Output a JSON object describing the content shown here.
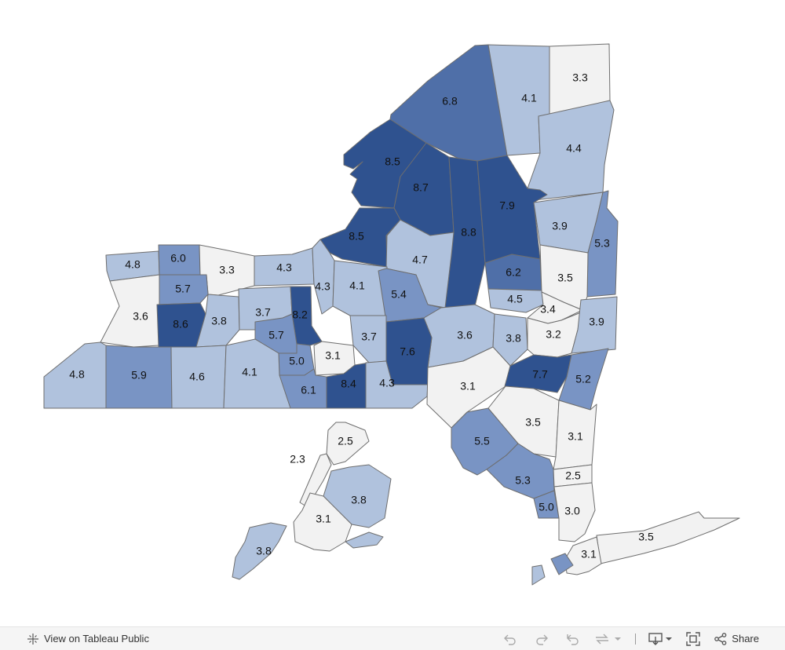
{
  "map": {
    "colors": {
      "lowest": "#f2f2f2",
      "low": "#b0c2dd",
      "mid": "#7994c4",
      "high": "#4f6fa8",
      "highest": "#2f528f",
      "border": "#6e6e6e"
    },
    "counties": [
      {
        "id": "c01",
        "value": "3.3",
        "tier": "lowest"
      },
      {
        "id": "c02",
        "value": "6.8",
        "tier": "high"
      },
      {
        "id": "c03",
        "value": "4.1",
        "tier": "low"
      },
      {
        "id": "c04",
        "value": "4.4",
        "tier": "low"
      },
      {
        "id": "c05",
        "value": "8.5",
        "tier": "highest"
      },
      {
        "id": "c06",
        "value": "8.7",
        "tier": "highest"
      },
      {
        "id": "c07",
        "value": "8.8",
        "tier": "highest"
      },
      {
        "id": "c08",
        "value": "7.9",
        "tier": "highest"
      },
      {
        "id": "c09",
        "value": "3.9",
        "tier": "low"
      },
      {
        "id": "c10",
        "value": "5.3",
        "tier": "mid"
      },
      {
        "id": "c11",
        "value": "8.5",
        "tier": "highest"
      },
      {
        "id": "c12",
        "value": "4.7",
        "tier": "low"
      },
      {
        "id": "c13",
        "value": "6.2",
        "tier": "high"
      },
      {
        "id": "c14",
        "value": "3.5",
        "tier": "lowest"
      },
      {
        "id": "c15",
        "value": "4.8",
        "tier": "low"
      },
      {
        "id": "c16",
        "value": "6.0",
        "tier": "mid"
      },
      {
        "id": "c17",
        "value": "3.3",
        "tier": "lowest"
      },
      {
        "id": "c18",
        "value": "4.3",
        "tier": "low"
      },
      {
        "id": "c19",
        "value": "4.3",
        "tier": "low"
      },
      {
        "id": "c20",
        "value": "4.1",
        "tier": "low"
      },
      {
        "id": "c21",
        "value": "5.4",
        "tier": "mid"
      },
      {
        "id": "c22",
        "value": "4.5",
        "tier": "low"
      },
      {
        "id": "c23",
        "value": "3.4",
        "tier": "lowest"
      },
      {
        "id": "c24",
        "value": "5.7",
        "tier": "mid"
      },
      {
        "id": "c25",
        "value": "3.6",
        "tier": "lowest"
      },
      {
        "id": "c26",
        "value": "8.6",
        "tier": "highest"
      },
      {
        "id": "c27",
        "value": "3.8",
        "tier": "low"
      },
      {
        "id": "c28",
        "value": "3.7",
        "tier": "low"
      },
      {
        "id": "c29",
        "value": "8.2",
        "tier": "highest"
      },
      {
        "id": "c30",
        "value": "5.7",
        "tier": "mid"
      },
      {
        "id": "c31",
        "value": "3.7",
        "tier": "low"
      },
      {
        "id": "c32",
        "value": "3.6",
        "tier": "low"
      },
      {
        "id": "c33",
        "value": "3.8",
        "tier": "low"
      },
      {
        "id": "c34",
        "value": "3.2",
        "tier": "lowest"
      },
      {
        "id": "c35",
        "value": "3.9",
        "tier": "low"
      },
      {
        "id": "c36",
        "value": "5.0",
        "tier": "mid"
      },
      {
        "id": "c37",
        "value": "3.1",
        "tier": "lowest"
      },
      {
        "id": "c38",
        "value": "7.6",
        "tier": "highest"
      },
      {
        "id": "c39",
        "value": "4.8",
        "tier": "low"
      },
      {
        "id": "c40",
        "value": "5.9",
        "tier": "mid"
      },
      {
        "id": "c41",
        "value": "4.6",
        "tier": "low"
      },
      {
        "id": "c42",
        "value": "4.1",
        "tier": "low"
      },
      {
        "id": "c43",
        "value": "6.1",
        "tier": "mid"
      },
      {
        "id": "c44",
        "value": "8.4",
        "tier": "highest"
      },
      {
        "id": "c45",
        "value": "4.3",
        "tier": "low"
      },
      {
        "id": "c46",
        "value": "3.1",
        "tier": "lowest"
      },
      {
        "id": "c47",
        "value": "7.7",
        "tier": "highest"
      },
      {
        "id": "c48",
        "value": "5.2",
        "tier": "mid"
      },
      {
        "id": "c49",
        "value": "5.5",
        "tier": "mid"
      },
      {
        "id": "c50",
        "value": "3.5",
        "tier": "lowest"
      },
      {
        "id": "c51",
        "value": "3.1",
        "tier": "lowest"
      },
      {
        "id": "c52",
        "value": "5.3",
        "tier": "mid"
      },
      {
        "id": "c53",
        "value": "2.5",
        "tier": "lowest"
      },
      {
        "id": "c54",
        "value": "5.0",
        "tier": "mid"
      },
      {
        "id": "c55",
        "value": "3.0",
        "tier": "lowest"
      },
      {
        "id": "c56",
        "value": "3.5",
        "tier": "lowest"
      },
      {
        "id": "c57",
        "value": "3.1",
        "tier": "lowest"
      },
      {
        "id": "c58",
        "value": "2.3",
        "tier": "lowest"
      },
      {
        "id": "c59",
        "value": "2.5",
        "tier": "lowest"
      },
      {
        "id": "c60",
        "value": "3.8",
        "tier": "low"
      },
      {
        "id": "c61",
        "value": "3.1",
        "tier": "lowest"
      },
      {
        "id": "c62",
        "value": "3.8",
        "tier": "low"
      }
    ]
  },
  "toolbar": {
    "view_label": "View on Tableau Public",
    "share_label": "Share",
    "icons": [
      "tableau-logo-icon",
      "undo-icon",
      "redo-icon",
      "revert-icon",
      "refresh-icon",
      "download-icon",
      "fullscreen-icon",
      "share-icon"
    ]
  }
}
